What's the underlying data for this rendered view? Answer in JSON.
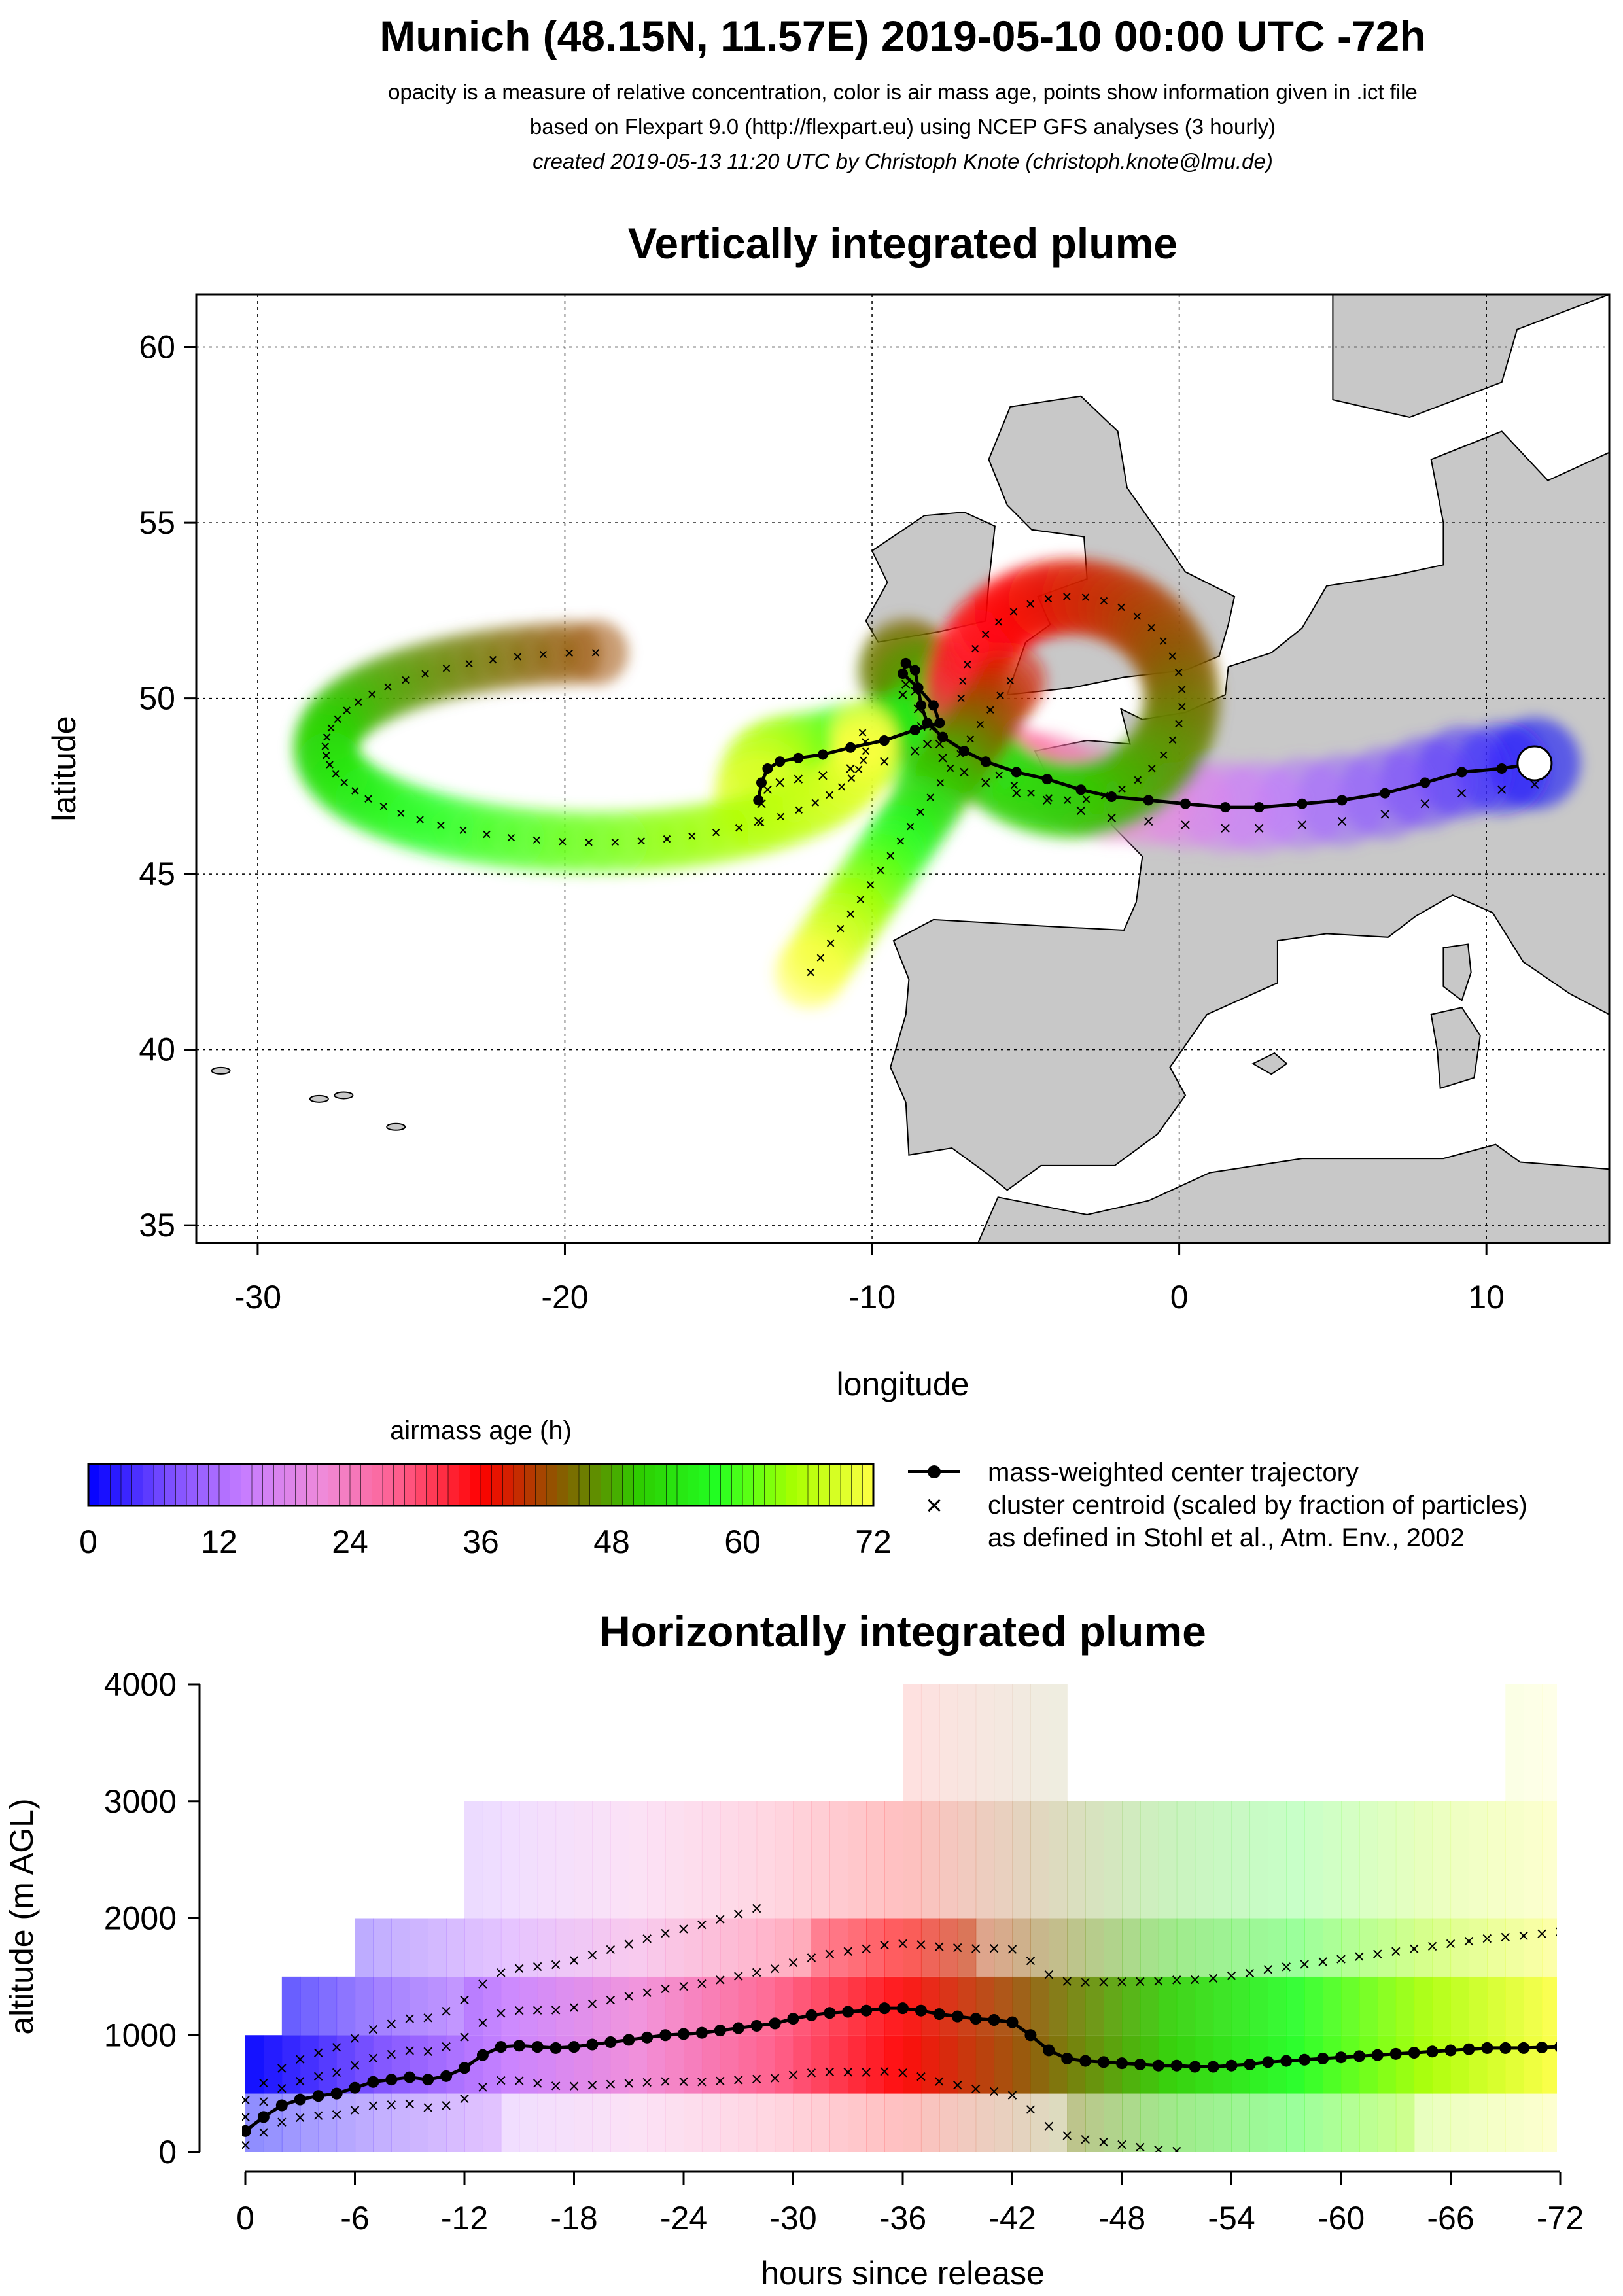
{
  "header": {
    "title": "Munich (48.15N, 11.57E) 2019-05-10 00:00 UTC -72h",
    "line1": "opacity is a measure of relative concentration, color is air mass age, points show information given in .ict file",
    "line2": "based on Flexpart 9.0 (http://flexpart.eu) using NCEP GFS analyses (3 hourly)",
    "line3": "created 2019-05-13 11:20 UTC by Christoph Knote (christoph.knote@lmu.de)"
  },
  "colors": {
    "age_ramp": [
      "#0000ff",
      "#7a4dff",
      "#c77dff",
      "#f08ad8",
      "#ff5c8a",
      "#ff0000",
      "#8a5a00",
      "#2ecc00",
      "#22ff22",
      "#aaff00",
      "#ffff44"
    ],
    "land": "#c8c8c8",
    "coast": "#000000"
  },
  "chart_data": [
    {
      "type": "scatter",
      "title": "Vertically integrated plume",
      "xlabel": "longitude",
      "ylabel": "latitude",
      "xlim": [
        -32,
        14
      ],
      "ylim": [
        34.5,
        61.5
      ],
      "xticks": [
        "-30",
        "-20",
        "-10",
        "0",
        "10"
      ],
      "xtick_values": [
        -30,
        -20,
        -10,
        0,
        10
      ],
      "yticks": [
        "35",
        "40",
        "45",
        "50",
        "55",
        "60"
      ],
      "ytick_values": [
        35,
        40,
        45,
        50,
        55,
        60
      ],
      "grid": true,
      "release_point": {
        "lon": 11.57,
        "lat": 48.15
      },
      "series": [
        {
          "name": "mass-weighted center trajectory",
          "x": [
            11.57,
            10.5,
            9.2,
            8.0,
            6.7,
            5.3,
            4.0,
            2.6,
            1.5,
            0.2,
            -1.0,
            -2.2,
            -3.2,
            -4.3,
            -5.3,
            -6.3,
            -7.0,
            -7.7,
            -8.2,
            -8.4,
            -8.5,
            -8.6,
            -8.9,
            -9.0,
            -8.5,
            -8.0,
            -7.8,
            -8.6,
            -9.6,
            -10.7,
            -11.6,
            -12.4,
            -13.0,
            -13.4,
            -13.6,
            -13.7
          ],
          "y": [
            48.15,
            48.0,
            47.9,
            47.6,
            47.3,
            47.1,
            47.0,
            46.9,
            46.9,
            47.0,
            47.1,
            47.2,
            47.4,
            47.7,
            47.9,
            48.2,
            48.5,
            48.9,
            49.3,
            49.8,
            50.3,
            50.8,
            51.0,
            50.7,
            50.3,
            49.8,
            49.3,
            49.1,
            48.8,
            48.6,
            48.4,
            48.3,
            48.2,
            48.0,
            47.6,
            47.1
          ]
        }
      ]
    },
    {
      "type": "scatter",
      "title": "Horizontally integrated plume",
      "xlabel": "hours since release",
      "ylabel": "altitude (m AGL)",
      "xlim": [
        0,
        -72
      ],
      "ylim": [
        0,
        4000
      ],
      "xticks": [
        "0",
        "-6",
        "-12",
        "-18",
        "-24",
        "-30",
        "-36",
        "-42",
        "-48",
        "-54",
        "-60",
        "-66",
        "-72"
      ],
      "xtick_values": [
        0,
        -6,
        -12,
        -18,
        -24,
        -30,
        -36,
        -42,
        -48,
        -54,
        -60,
        -66,
        -72
      ],
      "yticks": [
        "0",
        "1000",
        "2000",
        "3000",
        "4000"
      ],
      "ytick_values": [
        0,
        1000,
        2000,
        3000,
        4000
      ],
      "series": [
        {
          "name": "mass-weighted center trajectory",
          "x": [
            0,
            -1,
            -2,
            -3,
            -4,
            -5,
            -6,
            -7,
            -8,
            -9,
            -10,
            -11,
            -12,
            -13,
            -14,
            -15,
            -16,
            -17,
            -18,
            -19,
            -20,
            -21,
            -22,
            -23,
            -24,
            -25,
            -26,
            -27,
            -28,
            -29,
            -30,
            -31,
            -32,
            -33,
            -34,
            -35,
            -36,
            -37,
            -38,
            -39,
            -40,
            -41,
            -42,
            -43,
            -44,
            -45,
            -46,
            -47,
            -48,
            -49,
            -50,
            -51,
            -52,
            -53,
            -54,
            -55,
            -56,
            -57,
            -58,
            -59,
            -60,
            -61,
            -62,
            -63,
            -64,
            -65,
            -66,
            -67,
            -68,
            -69,
            -70,
            -71,
            -72
          ],
          "y": [
            180,
            300,
            400,
            450,
            480,
            500,
            550,
            600,
            620,
            640,
            620,
            650,
            720,
            830,
            900,
            910,
            900,
            890,
            900,
            920,
            940,
            960,
            980,
            1000,
            1010,
            1020,
            1040,
            1060,
            1080,
            1100,
            1140,
            1170,
            1190,
            1200,
            1210,
            1230,
            1230,
            1210,
            1180,
            1160,
            1140,
            1130,
            1110,
            1000,
            870,
            800,
            780,
            770,
            760,
            750,
            740,
            740,
            730,
            730,
            740,
            750,
            770,
            780,
            790,
            800,
            810,
            820,
            830,
            840,
            850,
            860,
            870,
            880,
            890,
            890,
            890,
            895,
            900
          ]
        }
      ]
    }
  ],
  "colorbar": {
    "title": "airmass age (h)",
    "ticks": [
      "0",
      "12",
      "24",
      "36",
      "48",
      "60",
      "72"
    ],
    "tick_values": [
      0,
      12,
      24,
      36,
      48,
      60,
      72
    ],
    "range": [
      0,
      72
    ]
  },
  "legend": {
    "line_label": "mass-weighted center trajectory",
    "cross_label": "cluster centroid (scaled by fraction of particles)",
    "cross_label2": "as defined in Stohl et al., Atm. Env., 2002",
    "cross_symbol": "×"
  }
}
